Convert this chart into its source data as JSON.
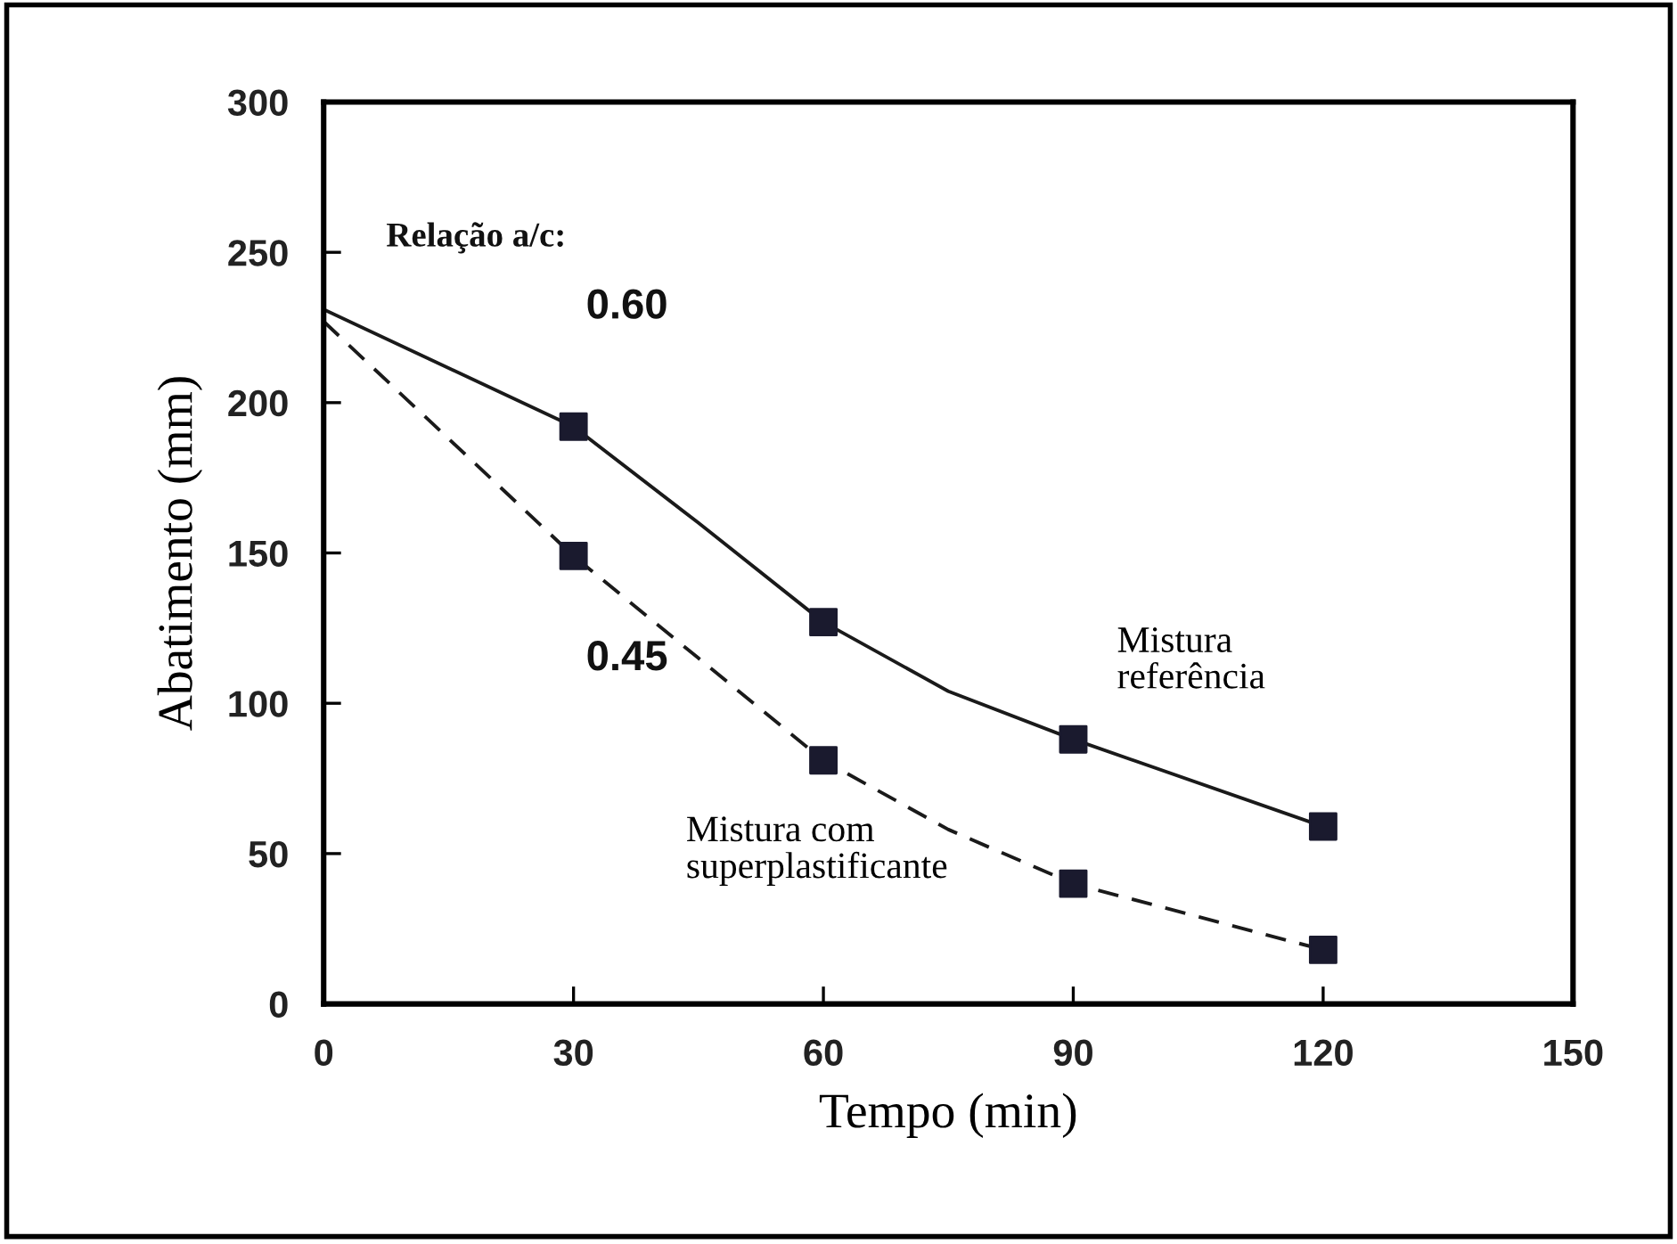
{
  "chart_data": {
    "type": "line",
    "xlabel": "Tempo (min)",
    "ylabel": "Abatimento (mm)",
    "xlim": [
      0,
      150
    ],
    "xticks": [
      0,
      30,
      60,
      90,
      120,
      150
    ],
    "ylim": [
      0,
      300
    ],
    "yticks": [
      0,
      50,
      100,
      150,
      200,
      250,
      300
    ],
    "grid": false,
    "legend": false,
    "series": [
      {
        "name": "Mistura referência",
        "line_style": "solid",
        "marker": "none",
        "color": "#1a1a1a",
        "x": [
          0,
          30,
          45,
          60,
          75,
          90,
          120
        ],
        "values": [
          231,
          192,
          160,
          127,
          104,
          88,
          59
        ]
      },
      {
        "name": "Mistura com superplastificante",
        "line_style": "dashed",
        "marker": "none",
        "color": "#1a1a1a",
        "x": [
          0,
          30,
          45,
          60,
          75,
          90,
          120
        ],
        "values": [
          227,
          149,
          115,
          81,
          58,
          40,
          18
        ]
      },
      {
        "type": "scatter",
        "marker": "square",
        "color": "#1a1a2e",
        "x": [
          30,
          60,
          90,
          120
        ],
        "values": [
          192,
          127,
          88,
          59
        ]
      },
      {
        "type": "scatter",
        "marker": "square",
        "color": "#1a1a2e",
        "x": [
          30,
          60,
          90,
          120
        ],
        "values": [
          149,
          81,
          40,
          18
        ]
      }
    ],
    "annotations": [
      "Relação a/c:",
      "0.60",
      "0.45"
    ]
  }
}
